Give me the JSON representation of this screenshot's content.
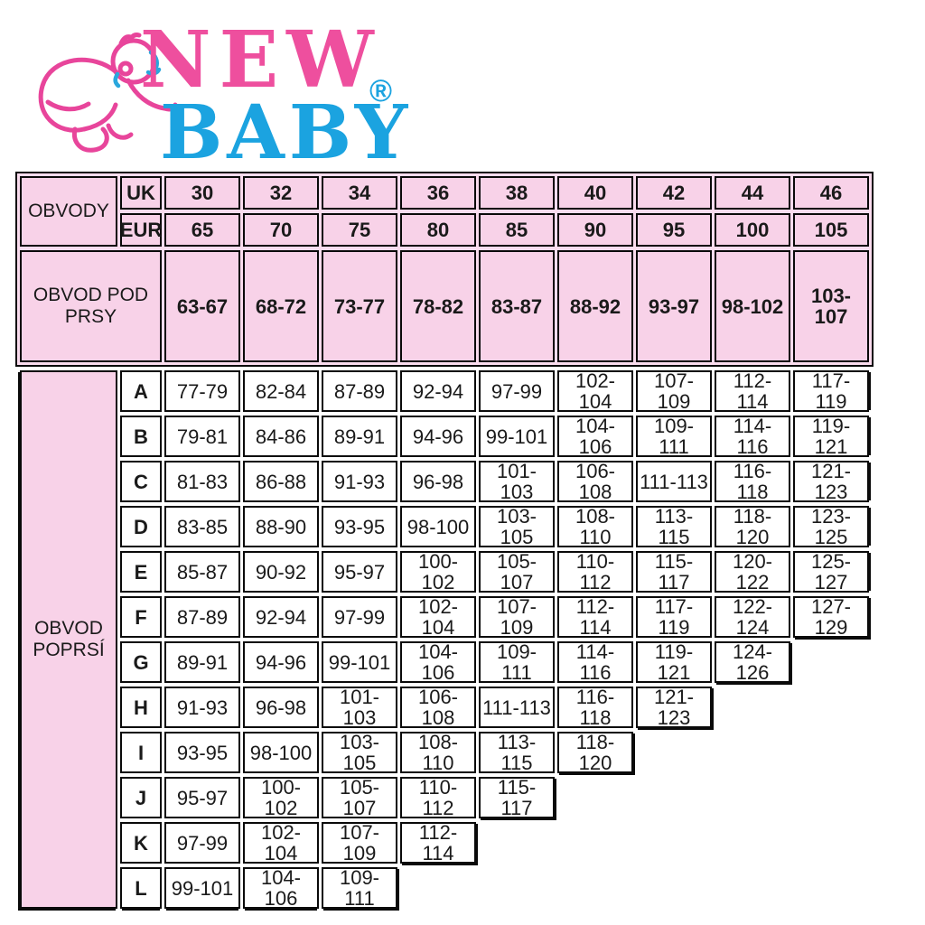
{
  "logo": {
    "text_top": "NEW",
    "text_bottom": "BABY",
    "registered_mark": "®",
    "pink": "#ee4f9e",
    "blue": "#1ba3e0"
  },
  "colors": {
    "cell_pink": "#f8d2e8",
    "block_pink": "#fadcee",
    "border": "#0a0a0a",
    "text": "#1a1a1a"
  },
  "table": {
    "corner_label": "OBVODY",
    "uk_label": "UK",
    "eur_label": "EUR",
    "uk_sizes": [
      "30",
      "32",
      "34",
      "36",
      "38",
      "40",
      "42",
      "44",
      "46"
    ],
    "eur_sizes": [
      "65",
      "70",
      "75",
      "80",
      "85",
      "90",
      "95",
      "100",
      "105"
    ],
    "underbust_label": "OBVOD POD PRSY",
    "underbust_ranges": [
      "63-67",
      "68-72",
      "73-77",
      "78-82",
      "83-87",
      "88-92",
      "93-97",
      "98-102",
      "103-107"
    ],
    "bust_label": "OBVOD POPRSÍ",
    "cup_rows": [
      {
        "letter": "A",
        "values": [
          "77-79",
          "82-84",
          "87-89",
          "92-94",
          "97-99",
          "102-104",
          "107-109",
          "112-114",
          "117-119"
        ]
      },
      {
        "letter": "B",
        "values": [
          "79-81",
          "84-86",
          "89-91",
          "94-96",
          "99-101",
          "104-106",
          "109-111",
          "114-116",
          "119-121"
        ]
      },
      {
        "letter": "C",
        "values": [
          "81-83",
          "86-88",
          "91-93",
          "96-98",
          "101-103",
          "106-108",
          "111-113",
          "116-118",
          "121-123"
        ]
      },
      {
        "letter": "D",
        "values": [
          "83-85",
          "88-90",
          "93-95",
          "98-100",
          "103-105",
          "108-110",
          "113-115",
          "118-120",
          "123-125"
        ]
      },
      {
        "letter": "E",
        "values": [
          "85-87",
          "90-92",
          "95-97",
          "100-102",
          "105-107",
          "110-112",
          "115-117",
          "120-122",
          "125-127"
        ]
      },
      {
        "letter": "F",
        "values": [
          "87-89",
          "92-94",
          "97-99",
          "102-104",
          "107-109",
          "112-114",
          "117-119",
          "122-124",
          "127-129"
        ]
      },
      {
        "letter": "G",
        "values": [
          "89-91",
          "94-96",
          "99-101",
          "104-106",
          "109-111",
          "114-116",
          "119-121",
          "124-126"
        ]
      },
      {
        "letter": "H",
        "values": [
          "91-93",
          "96-98",
          "101-103",
          "106-108",
          "111-113",
          "116-118",
          "121-123"
        ]
      },
      {
        "letter": "I",
        "values": [
          "93-95",
          "98-100",
          "103-105",
          "108-110",
          "113-115",
          "118-120"
        ]
      },
      {
        "letter": "J",
        "values": [
          "95-97",
          "100-102",
          "105-107",
          "110-112",
          "115-117"
        ]
      },
      {
        "letter": "K",
        "values": [
          "97-99",
          "102-104",
          "107-109",
          "112-114"
        ]
      },
      {
        "letter": "L",
        "values": [
          "99-101",
          "104-106",
          "109-111"
        ]
      }
    ]
  }
}
